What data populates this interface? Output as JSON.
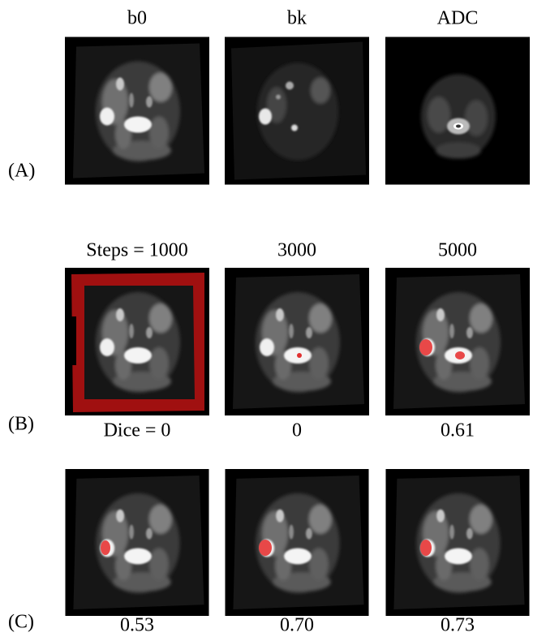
{
  "rows": [
    {
      "label": "(A)",
      "headers": [
        "b0",
        "bk",
        "ADC"
      ]
    },
    {
      "label": "(B)",
      "headers": [
        "Steps = 1000",
        "3000",
        "5000"
      ],
      "captions": [
        "Dice = 0",
        "0",
        "0.61"
      ]
    },
    {
      "label": "(C)",
      "captions": [
        "0.53",
        "0.70",
        "0.73"
      ]
    }
  ]
}
